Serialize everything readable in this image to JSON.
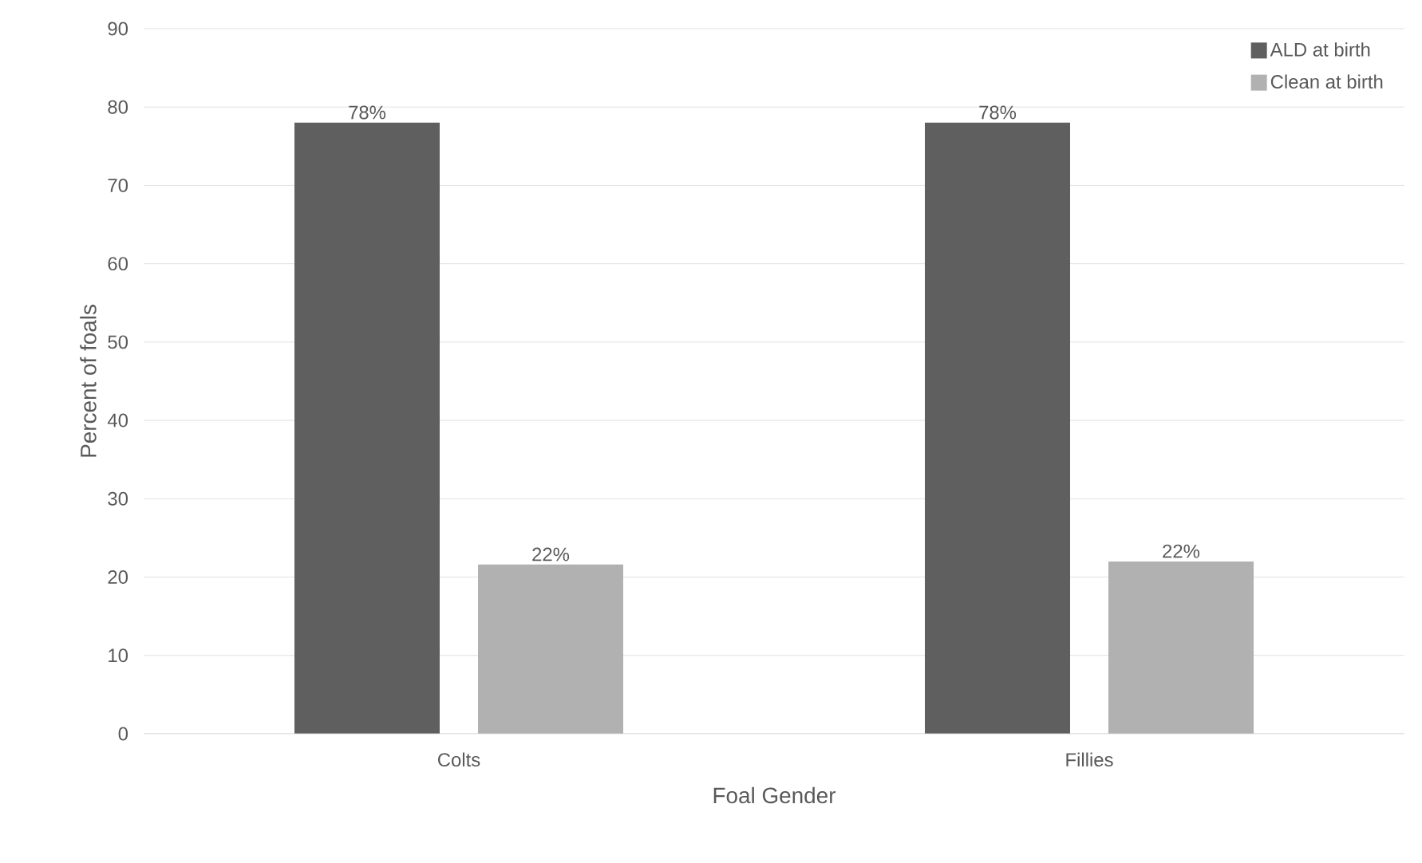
{
  "chart_data": {
    "type": "bar",
    "xlabel": "Foal Gender",
    "ylabel": "Percent of foals",
    "categories": [
      "Colts",
      "Fillies"
    ],
    "series": [
      {
        "name": "ALD at birth",
        "color": "#5f5f5f",
        "values": [
          78,
          78
        ],
        "value_labels": [
          "78%",
          "78%"
        ]
      },
      {
        "name": "Clean at birth",
        "color": "#b1b1b1",
        "values": [
          21.6,
          22
        ],
        "value_labels": [
          "22%",
          "22%"
        ]
      }
    ],
    "ylim": [
      0,
      90
    ],
    "yticks": [
      0,
      10,
      20,
      30,
      40,
      50,
      60,
      70,
      80,
      90
    ],
    "grid": "y",
    "legend": "top right"
  }
}
